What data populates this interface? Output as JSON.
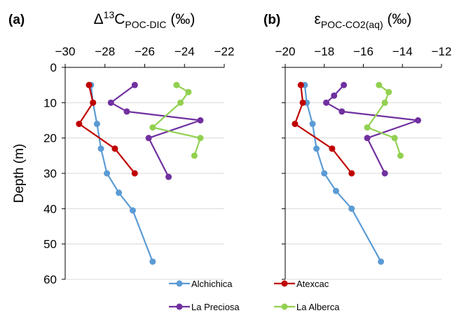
{
  "chart_data": [
    {
      "type": "line",
      "panel_label": "(a)",
      "title": {
        "pre": "Δ",
        "sup": "13",
        "main": "C",
        "sub": "POC-DIC",
        "post": " (‰)"
      },
      "ylabel": "Depth (m)",
      "xlim": [
        -30,
        -22
      ],
      "x_ticks": [
        -30,
        -28,
        -26,
        -24,
        -22
      ],
      "ylim": [
        0,
        60
      ],
      "y_ticks": [
        0,
        10,
        20,
        30,
        40,
        50,
        60
      ],
      "y_inverted": true,
      "x_axis_position": "top",
      "grid": "horizontal",
      "series": [
        {
          "name": "Alchichica",
          "color": "#5b9bd5",
          "points": [
            [
              -28.7,
              5
            ],
            [
              -28.6,
              10
            ],
            [
              -28.4,
              16
            ],
            [
              -28.2,
              23
            ],
            [
              -27.9,
              30
            ],
            [
              -27.3,
              35.5
            ],
            [
              -26.6,
              40.5
            ],
            [
              -25.6,
              55
            ]
          ]
        },
        {
          "name": "Atexcac",
          "color": "#c00000",
          "points": [
            [
              -28.8,
              5
            ],
            [
              -28.6,
              10
            ],
            [
              -29.3,
              16
            ],
            [
              -27.5,
              23
            ],
            [
              -26.5,
              30
            ]
          ]
        },
        {
          "name": "La Preciosa",
          "color": "#7030a0",
          "points": [
            [
              -26.5,
              5
            ],
            [
              -27.7,
              10
            ],
            [
              -26.9,
              12.5
            ],
            [
              -23.2,
              15
            ],
            [
              -25.8,
              20
            ],
            [
              -24.8,
              31
            ]
          ]
        },
        {
          "name": "La Alberca",
          "color": "#92d050",
          "points": [
            [
              -24.4,
              5
            ],
            [
              -23.8,
              7
            ],
            [
              -24.2,
              10
            ],
            [
              -25.6,
              17
            ],
            [
              -23.2,
              20
            ],
            [
              -23.5,
              25
            ]
          ]
        }
      ]
    },
    {
      "type": "line",
      "panel_label": "(b)",
      "title": {
        "pre": "ε",
        "sup": "",
        "main": "",
        "sub": "POC-CO2(aq)",
        "post": " (‰)"
      },
      "ylabel": "",
      "xlim": [
        -20,
        -12
      ],
      "x_ticks": [
        -20,
        -18,
        -16,
        -14,
        -12
      ],
      "ylim": [
        0,
        60
      ],
      "y_ticks": [
        0,
        10,
        20,
        30,
        40,
        50,
        60
      ],
      "y_inverted": true,
      "x_axis_position": "top",
      "grid": "horizontal",
      "series": [
        {
          "name": "Alchichica",
          "color": "#5b9bd5",
          "points": [
            [
              -19.0,
              5
            ],
            [
              -18.9,
              10
            ],
            [
              -18.6,
              16
            ],
            [
              -18.4,
              23
            ],
            [
              -18.0,
              30
            ],
            [
              -17.4,
              35
            ],
            [
              -16.6,
              40
            ],
            [
              -15.1,
              55
            ]
          ]
        },
        {
          "name": "Atexcac",
          "color": "#c00000",
          "points": [
            [
              -19.2,
              5
            ],
            [
              -19.1,
              10
            ],
            [
              -19.5,
              16
            ],
            [
              -17.6,
              23
            ],
            [
              -16.6,
              30
            ]
          ]
        },
        {
          "name": "La Preciosa",
          "color": "#7030a0",
          "points": [
            [
              -17.0,
              5
            ],
            [
              -17.5,
              8
            ],
            [
              -17.9,
              10
            ],
            [
              -17.1,
              12.5
            ],
            [
              -13.2,
              15
            ],
            [
              -15.8,
              20
            ],
            [
              -14.9,
              30
            ]
          ]
        },
        {
          "name": "La Alberca",
          "color": "#92d050",
          "points": [
            [
              -15.2,
              5
            ],
            [
              -14.7,
              7
            ],
            [
              -14.9,
              10
            ],
            [
              -15.8,
              17
            ],
            [
              -14.4,
              20
            ],
            [
              -14.1,
              25
            ]
          ]
        }
      ]
    }
  ],
  "legend": [
    {
      "name": "Alchichica",
      "color": "#5b9bd5"
    },
    {
      "name": "Atexcac",
      "color": "#c00000"
    },
    {
      "name": "La Preciosa",
      "color": "#7030a0"
    },
    {
      "name": "La Alberca",
      "color": "#92d050"
    }
  ]
}
